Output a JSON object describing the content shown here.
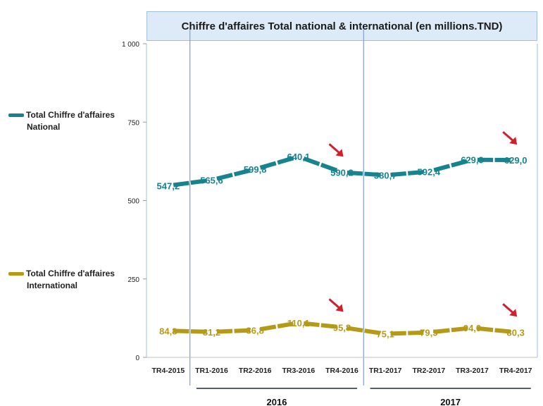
{
  "chart_data": {
    "type": "line",
    "title": "Chiffre d'affaires Total  national & international (en millions.TND)",
    "categories": [
      "TR4-2015",
      "TR1-2016",
      "TR2-2016",
      "TR3-2016",
      "TR4-2016",
      "TR1-2017",
      "TR2-2017",
      "TR3-2017",
      "TR4-2017"
    ],
    "year_groups": [
      {
        "label": "2016",
        "from": "TR1-2016",
        "to": "TR4-2016"
      },
      {
        "label": "2017",
        "from": "TR1-2017",
        "to": "TR4-2017"
      }
    ],
    "series": [
      {
        "name_line1": "Total Chiffre d'affaires",
        "name_line2": "National",
        "color": "#17838f",
        "values": [
          547.2,
          565.6,
          599.8,
          640.1,
          590.2,
          580.7,
          592.4,
          629.9,
          629.0
        ],
        "labels": [
          "547,2",
          "565,6",
          "599,8",
          "640,1",
          "590,2",
          "580,7",
          "592,4",
          "629,9",
          "629,0"
        ]
      },
      {
        "name_line1": "Total Chiffre d'affaires",
        "name_line2": "International",
        "color": "#b59a17",
        "values": [
          84.8,
          81.2,
          86.8,
          110.1,
          95.8,
          75.1,
          79.5,
          94.0,
          80.3
        ],
        "labels": [
          "84,8",
          "81,2",
          "86,8",
          "110,1",
          "95,8",
          "75,1",
          "79,5",
          "94,0",
          "80,3"
        ]
      }
    ],
    "ylim": [
      0,
      1000
    ],
    "yticks": [
      0,
      250,
      500,
      750,
      1000
    ],
    "ytick_labels": [
      "0",
      "250",
      "500",
      "750",
      "1 000"
    ],
    "arrow_color": "#d0202e",
    "decline_arrows": [
      {
        "series": 0,
        "category": "TR4-2016"
      },
      {
        "series": 0,
        "category": "TR4-2017"
      },
      {
        "series": 1,
        "category": "TR4-2016"
      },
      {
        "series": 1,
        "category": "TR4-2017"
      }
    ],
    "grid": false,
    "legend_position": "left"
  }
}
